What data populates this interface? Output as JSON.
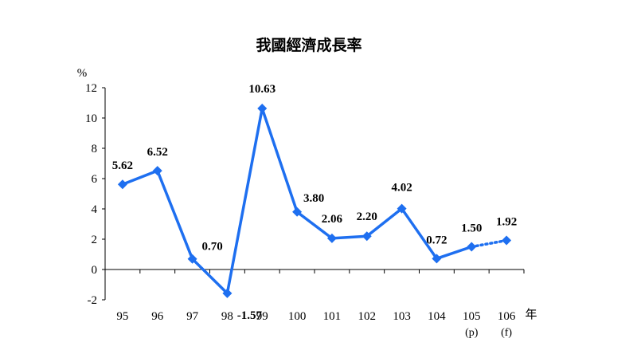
{
  "chart_data": {
    "type": "line",
    "title": "我國經濟成長率",
    "ylabel": "%",
    "xlabel": "年",
    "ylim": [
      -2,
      12
    ],
    "yticks": [
      "12",
      "10",
      "8",
      "6",
      "4",
      "2",
      "0",
      "-2"
    ],
    "categories": [
      "95",
      "96",
      "97",
      "98",
      "99",
      "100",
      "101",
      "102",
      "103",
      "104",
      "105",
      "106"
    ],
    "category_notes": [
      "",
      "",
      "",
      "",
      "",
      "",
      "",
      "",
      "",
      "",
      "(p)",
      "(f)"
    ],
    "values": [
      5.62,
      6.52,
      0.7,
      -1.57,
      10.63,
      3.8,
      2.06,
      2.2,
      4.02,
      0.72,
      1.5,
      1.92
    ],
    "data_labels": [
      "5.62",
      "6.52",
      "0.70",
      "-1.57",
      "10.63",
      "3.80",
      "2.06",
      "2.20",
      "4.02",
      "0.72",
      "1.50",
      "1.92"
    ],
    "dotted_last_segment": true,
    "grid": false,
    "line_color": "#1e6ff0"
  }
}
